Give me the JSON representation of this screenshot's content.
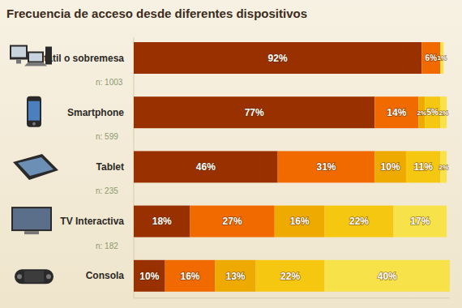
{
  "chart_data": {
    "type": "bar",
    "orientation": "horizontal",
    "stacked": true,
    "data_labels": true,
    "tick_labels": false,
    "grid": false,
    "title": "Frecuencia de acceso desde diferentes dispositivos",
    "categories": [
      "Portátil o sobremesa",
      "Smartphone",
      "Tablet",
      "TV Interactiva",
      "Consola"
    ],
    "annotations": [
      "n: 1003",
      "n: 599",
      "n: 235",
      "n: 182"
    ],
    "xlim": [
      0,
      101
    ],
    "series": [
      {
        "color": "#993000",
        "values": [
          92,
          77,
          46,
          18,
          10
        ],
        "value_labels": [
          "92%",
          "77%",
          "46%",
          "18%",
          "10%"
        ]
      },
      {
        "color": "#f06a00",
        "values": [
          6,
          14,
          31,
          27,
          16
        ],
        "value_labels": [
          "6%",
          "14%",
          "31%",
          "27%",
          "16%"
        ]
      },
      {
        "color": "#eeaa00",
        "values": [
          null,
          2,
          10,
          16,
          13
        ],
        "value_labels": [
          null,
          "2%",
          "10%",
          "16%",
          "13%"
        ]
      },
      {
        "color": "#f6c710",
        "values": [
          null,
          5,
          11,
          22,
          22
        ],
        "value_labels": [
          null,
          "5%",
          "11%",
          "22%",
          "22%"
        ]
      },
      {
        "color": "#f7e24a",
        "values": [
          1,
          2,
          2,
          17,
          40
        ],
        "value_labels": [
          "1%",
          "2%",
          "2%",
          "17%",
          "40%"
        ]
      }
    ]
  }
}
